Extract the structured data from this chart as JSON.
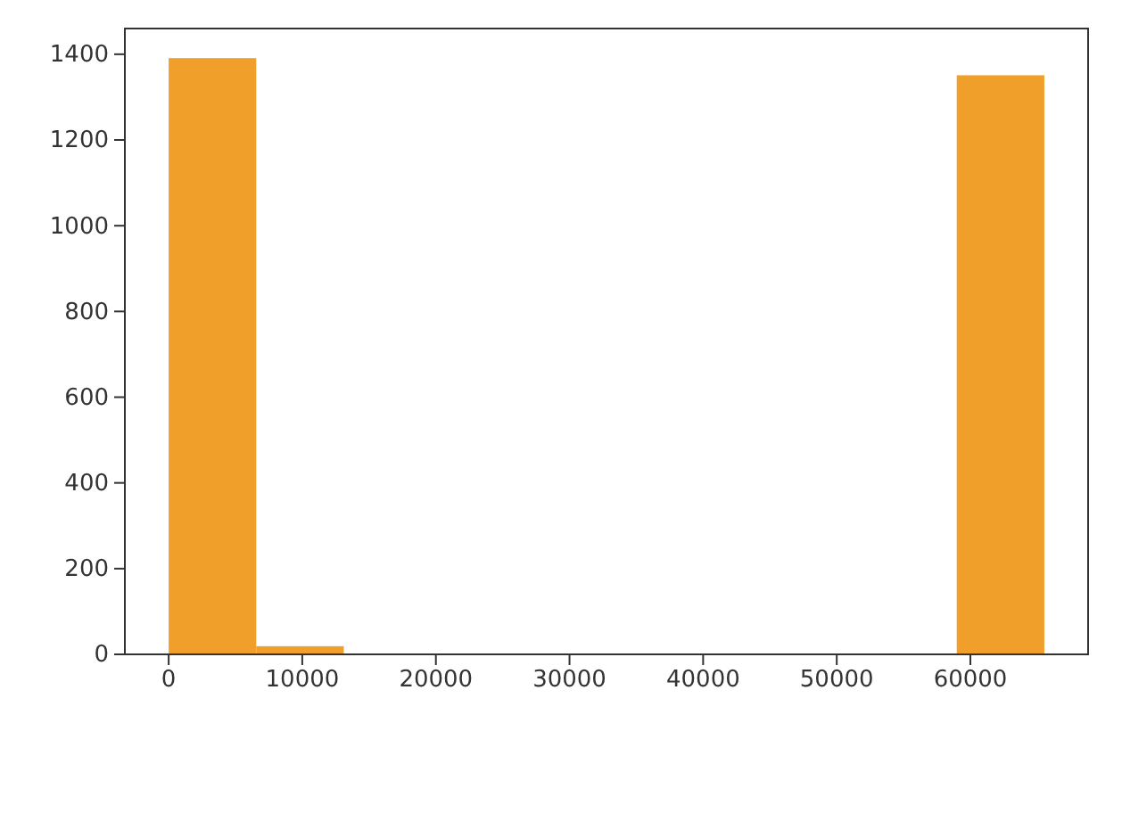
{
  "chart_data": {
    "type": "histogram",
    "color": "#f0a02a",
    "bins": [
      0,
      6553.5,
      13107,
      19660.5,
      26214,
      32767.5,
      39321,
      45874.5,
      52428,
      58981.5,
      65535
    ],
    "values": [
      1391,
      19,
      0,
      0,
      0,
      0,
      0,
      0,
      0,
      1351
    ],
    "xlim": [
      -3277,
      68812
    ],
    "ylim": [
      0,
      1460
    ],
    "xticks": [
      0,
      10000,
      20000,
      30000,
      40000,
      50000,
      60000
    ],
    "yticks": [
      0,
      200,
      400,
      600,
      800,
      1000,
      1200,
      1400
    ]
  }
}
